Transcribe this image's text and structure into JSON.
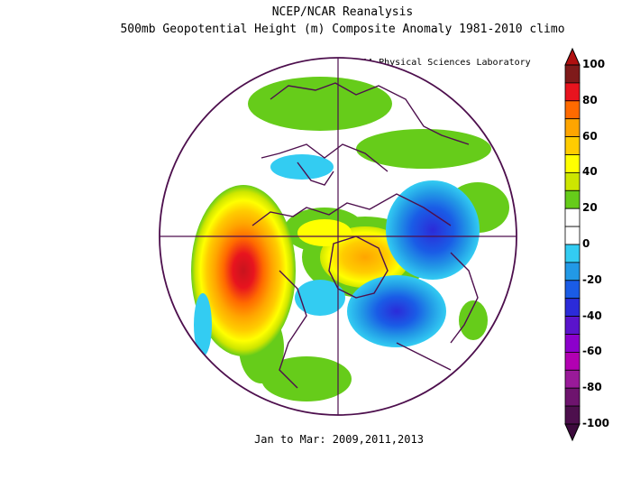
{
  "header": {
    "title": "NCEP/NCAR Reanalysis",
    "subtitle": "500mb Geopotential Height (m) Composite Anomaly 1981-2010 climo",
    "credit": "NOAA Physical Sciences Laboratory"
  },
  "footer": {
    "period": "Jan to Mar: 2009,2011,2013"
  },
  "colorbar": {
    "ticks": [
      "100",
      "80",
      "60",
      "40",
      "20",
      "0",
      "-20",
      "-40",
      "-60",
      "-80",
      "-100"
    ],
    "colors": [
      "#7f1a1a",
      "#e8141e",
      "#ff6a00",
      "#ffa500",
      "#ffcc00",
      "#ffff00",
      "#cde600",
      "#66cc1a",
      "#ffffff",
      "#ffffff",
      "#33ccf2",
      "#2299e6",
      "#1a5ce6",
      "#2b2bd9",
      "#5a14cc",
      "#8c00cc",
      "#b200b2",
      "#991a99",
      "#6e146e",
      "#4d0f4d"
    ]
  }
}
